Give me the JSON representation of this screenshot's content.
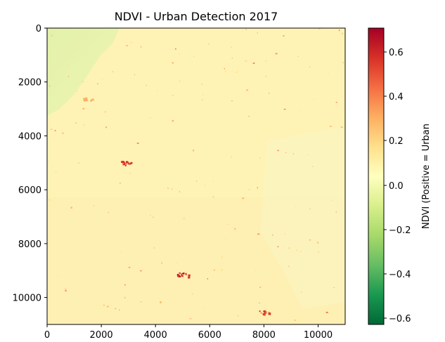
{
  "chart_data": {
    "type": "heatmap",
    "title": "NDVI - Urban Detection 2017",
    "xlim": [
      0,
      11000
    ],
    "ylim": [
      11000,
      0
    ],
    "x_ticks": [
      0,
      2000,
      4000,
      6000,
      8000,
      10000
    ],
    "y_ticks": [
      0,
      2000,
      4000,
      6000,
      8000,
      10000
    ],
    "x_tick_labels": [
      "0",
      "2000",
      "4000",
      "6000",
      "8000",
      "10000"
    ],
    "y_tick_labels": [
      "0",
      "2000",
      "4000",
      "6000",
      "8000",
      "10000"
    ],
    "colormap": "RdYlGn_r",
    "colorbar": {
      "label": "NDVI (Positive = Urban",
      "range": [
        -0.65,
        0.7
      ],
      "ticks": [
        0.6,
        0.4,
        0.2,
        0.0,
        -0.2,
        -0.4,
        -0.6
      ],
      "tick_labels": [
        "0.6",
        "0.4",
        "0.2",
        "0.0",
        "−0.2",
        "−0.4",
        "−0.6"
      ],
      "colors": [
        "#a50026",
        "#d73027",
        "#f46d43",
        "#fdae61",
        "#fee08b",
        "#ffffbf",
        "#d9ef8b",
        "#a6d96a",
        "#66bd63",
        "#1a9850",
        "#006837"
      ]
    },
    "dominant_value": 0.05,
    "features": [
      {
        "name": "vegetated-area",
        "value": -0.15
      },
      {
        "name": "urban-cluster-a",
        "x": 2900,
        "y": 5000,
        "value": 0.6
      },
      {
        "name": "urban-cluster-b",
        "x": 5000,
        "y": 9150,
        "value": 0.65
      },
      {
        "name": "urban-cluster-c",
        "x": 8000,
        "y": 10550,
        "value": 0.6
      },
      {
        "name": "urban-cluster-d",
        "x": 1500,
        "y": 2600,
        "value": 0.35
      }
    ]
  }
}
